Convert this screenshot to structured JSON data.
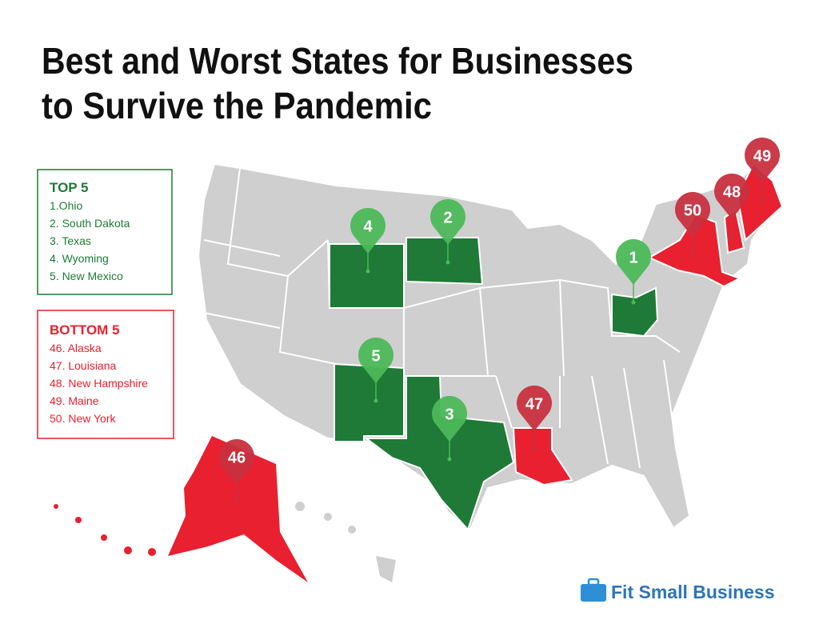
{
  "title": [
    "Best and Worst States for Businesses",
    "to Survive the Pandemic"
  ],
  "top": {
    "heading": "TOP 5",
    "items": [
      "1.Ohio",
      "2. South Dakota",
      "3. Texas",
      "4. Wyoming",
      "5. New Mexico"
    ]
  },
  "bottom": {
    "heading": "BOTTOM 5",
    "items": [
      "46. Alaska",
      "47. Louisiana",
      "48. New Hampshire",
      "49. Maine",
      "50. New York"
    ]
  },
  "pins": [
    "1",
    "2",
    "3",
    "4",
    "5",
    "46",
    "47",
    "48",
    "49",
    "50"
  ],
  "brand": "Fit Small Business"
}
